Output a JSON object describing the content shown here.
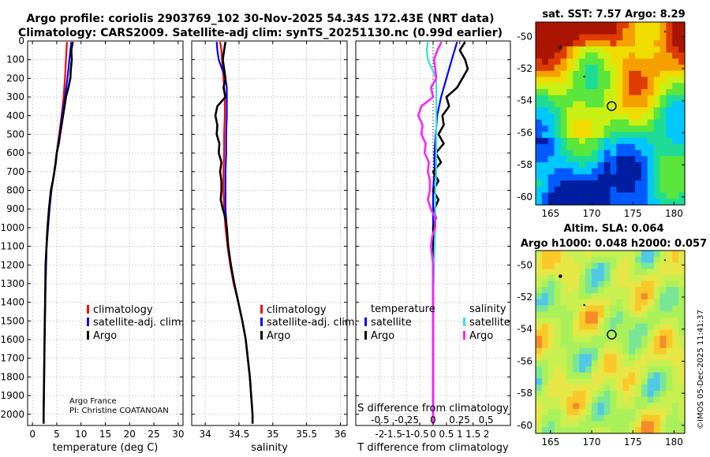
{
  "title_line1": "Argo profile: coriolis 2903769_102 30-Nov-2025 54.34S 172.43E (NRT data)",
  "title_line2": "Climatology: CARS2009. Satellite-adj clim: synTS_20251130.nc (0.99d earlier)",
  "credit_org": "Argo France",
  "credit_pi": "PI: Christine COATANOAN",
  "imos_stamp": "©IMOS 05-Dec-2025 11:41:37",
  "colors": {
    "climatology": "#ff0000",
    "satellite_adj": "#0000ff",
    "argo": "#000000",
    "sal_satellite": "#33e0e0",
    "sal_argo": "#ff22ff"
  },
  "legend": {
    "climatology": "climatology",
    "satellite_adj": "satellite-adj. clim.",
    "argo": "Argo",
    "diff_temperature_header": "temperature",
    "diff_salinity_header": "salinity",
    "satellite": "satellite",
    "argo_short": "Argo"
  },
  "maps": {
    "sst_title": "sat. SST: 7.57 Argo: 8.29",
    "sla_title1": "Altim. SLA: 0.064",
    "sla_title2": "Argo h1000: 0.048 h2000: 0.057",
    "lon_ticks": [
      165,
      170,
      175,
      180
    ],
    "lat_ticks": [
      -50,
      -52,
      -54,
      -56,
      -58,
      -60
    ],
    "argo_position": {
      "lon": 172.43,
      "lat": -54.34
    }
  },
  "chart_data": [
    {
      "type": "line",
      "title": "",
      "xlabel": "temperature (deg C)",
      "ylabel": "",
      "xlim": [
        -1,
        31
      ],
      "ylim": [
        2060,
        0
      ],
      "xticks": [
        0,
        5,
        10,
        15,
        20,
        25,
        30
      ],
      "yticks": [
        0,
        100,
        200,
        300,
        400,
        500,
        600,
        700,
        800,
        900,
        1000,
        1100,
        1200,
        1300,
        1400,
        1500,
        1600,
        1700,
        1800,
        1900,
        2000
      ],
      "series": [
        {
          "name": "climatology",
          "depth": [
            5,
            100,
            200,
            300,
            400,
            500,
            600,
            700,
            800,
            900,
            1000,
            1100,
            1200,
            1400,
            1600,
            1800,
            2000,
            2050
          ],
          "values": [
            7.1,
            6.9,
            6.7,
            6.4,
            6.0,
            5.5,
            5.0,
            4.5,
            3.9,
            3.5,
            3.2,
            2.9,
            2.8,
            2.6,
            2.5,
            2.4,
            2.3,
            2.3
          ]
        },
        {
          "name": "satellite-adj. clim.",
          "depth": [
            5,
            100,
            200,
            300,
            400,
            500,
            600,
            700,
            800,
            900,
            1000,
            1100,
            1200,
            1400,
            1600,
            1800,
            2000,
            2050
          ],
          "values": [
            8.0,
            7.6,
            7.2,
            6.7,
            6.1,
            5.6,
            5.0,
            4.5,
            3.9,
            3.5,
            3.2,
            2.9,
            2.8,
            2.6,
            2.5,
            2.4,
            2.3,
            2.3
          ]
        },
        {
          "name": "Argo",
          "depth": [
            5,
            50,
            100,
            150,
            200,
            250,
            300,
            350,
            400,
            450,
            500,
            550,
            600,
            650,
            700,
            750,
            800,
            850,
            900,
            1000,
            1100,
            1200,
            1400,
            1600,
            1800,
            2000,
            2050
          ],
          "values": [
            8.3,
            8.0,
            8.1,
            7.9,
            7.8,
            7.4,
            6.9,
            6.6,
            6.3,
            6.0,
            5.7,
            5.4,
            5.0,
            4.8,
            4.5,
            4.2,
            3.8,
            3.6,
            3.4,
            3.1,
            2.9,
            2.7,
            2.6,
            2.5,
            2.4,
            2.3,
            2.3
          ]
        }
      ],
      "legend_entries": [
        "climatology",
        "satellite-adj. clim.",
        "Argo"
      ],
      "legend_position": "lower-right"
    },
    {
      "type": "line",
      "title": "",
      "xlabel": "salinity",
      "ylabel": "",
      "xlim": [
        33.8,
        36.1
      ],
      "ylim": [
        2060,
        0
      ],
      "xticks": [
        34,
        34.5,
        35,
        35.5,
        36
      ],
      "series": [
        {
          "name": "climatology",
          "depth": [
            5,
            50,
            100,
            150,
            200,
            300,
            400,
            500,
            600,
            700,
            800,
            900,
            1000,
            1100,
            1200,
            1300,
            1400,
            1500,
            1600,
            1700,
            1800,
            1900,
            2000,
            2050
          ],
          "values": [
            34.22,
            34.24,
            34.25,
            34.26,
            34.27,
            34.29,
            34.29,
            34.28,
            34.28,
            34.27,
            34.27,
            34.28,
            34.3,
            34.33,
            34.37,
            34.42,
            34.49,
            34.55,
            34.6,
            34.63,
            34.66,
            34.68,
            34.7,
            34.7
          ]
        },
        {
          "name": "satellite-adj. clim.",
          "depth": [
            5,
            50,
            100,
            150,
            200,
            250,
            300,
            400,
            500,
            600,
            700,
            800,
            900,
            1000,
            1100,
            1200,
            1300,
            1400,
            1500,
            1600,
            1700,
            1800,
            1900,
            2000,
            2050
          ],
          "values": [
            34.17,
            34.18,
            34.2,
            34.25,
            34.3,
            34.32,
            34.32,
            34.32,
            34.31,
            34.31,
            34.3,
            34.3,
            34.3,
            34.32,
            34.34,
            34.38,
            34.43,
            34.49,
            34.55,
            34.6,
            34.63,
            34.66,
            34.68,
            34.7,
            34.7
          ]
        },
        {
          "name": "Argo",
          "depth": [
            5,
            50,
            100,
            150,
            200,
            250,
            300,
            350,
            400,
            450,
            500,
            550,
            600,
            650,
            700,
            750,
            800,
            850,
            900,
            950,
            1000,
            1050,
            1100,
            1150,
            1200,
            1300,
            1400,
            1500,
            1600,
            1700,
            1800,
            1900,
            2000,
            2050
          ],
          "values": [
            34.3,
            34.28,
            34.26,
            34.28,
            34.3,
            34.27,
            34.3,
            34.18,
            34.15,
            34.18,
            34.17,
            34.21,
            34.2,
            34.24,
            34.22,
            34.24,
            34.24,
            34.23,
            34.26,
            34.3,
            34.32,
            34.33,
            34.34,
            34.36,
            34.38,
            34.43,
            34.49,
            34.55,
            34.6,
            34.63,
            34.66,
            34.68,
            34.7,
            34.7
          ]
        }
      ],
      "legend_entries": [
        "climatology",
        "satellite-adj. clim.",
        "Argo"
      ],
      "legend_position": "lower-right"
    },
    {
      "type": "line",
      "title": "",
      "xlabel": "T difference from climatology",
      "x2label": "S difference from climatology",
      "xlim": [
        -2.9,
        2.9
      ],
      "ylim": [
        2060,
        0
      ],
      "xticks": [
        -2,
        -1.5,
        -1,
        -0.5,
        0,
        0.5,
        1,
        1.5,
        2
      ],
      "xticklabels": [
        "-2",
        "-1.5",
        "-1",
        "-0.5",
        "0",
        "0.5",
        "1",
        "1.5",
        "2"
      ],
      "x2lim": [
        -0.73,
        0.73
      ],
      "x2ticks": [
        -0.5,
        -0.25,
        0,
        0.25,
        0.5
      ],
      "x2ticklabels": [
        "-0.5",
        "-0.25",
        "0",
        "0.25",
        "0.5"
      ],
      "series": [
        {
          "name": "temperature satellite",
          "depth": [
            5,
            100,
            200,
            300,
            400,
            500,
            600,
            700,
            800,
            900,
            1000,
            1100,
            1200,
            1400,
            1600,
            1800,
            2000,
            2050
          ],
          "values": [
            0.9,
            0.7,
            0.5,
            0.3,
            0.15,
            0.1,
            0.05,
            0.05,
            0.0,
            0.0,
            0.0,
            0.0,
            0.0,
            0.0,
            0.0,
            0.0,
            0.0,
            0.0
          ]
        },
        {
          "name": "temperature Argo",
          "depth": [
            5,
            50,
            100,
            150,
            200,
            250,
            300,
            350,
            400,
            450,
            500,
            550,
            600,
            650,
            700,
            750,
            800,
            850,
            900,
            950,
            1000,
            1100,
            1200,
            1400,
            1600,
            1800,
            2000,
            2050
          ],
          "values": [
            1.2,
            1.0,
            1.2,
            1.3,
            1.1,
            0.9,
            0.5,
            0.6,
            0.35,
            0.4,
            0.2,
            0.4,
            0.1,
            0.3,
            0.0,
            0.2,
            0.0,
            0.2,
            0.05,
            0.1,
            0.0,
            0.02,
            0.0,
            0.0,
            0.0,
            0.0,
            0.0,
            0.0
          ]
        },
        {
          "name": "salinity satellite",
          "depth": [
            5,
            50,
            100,
            150,
            200,
            300,
            400,
            500,
            600,
            700,
            800,
            900,
            1000,
            1200,
            1400,
            1600,
            1800,
            2000,
            2050
          ],
          "values": [
            -0.05,
            -0.06,
            -0.05,
            -0.01,
            0.03,
            0.03,
            0.03,
            0.03,
            0.03,
            0.03,
            0.02,
            0.02,
            0.02,
            0.01,
            0.0,
            0.0,
            0.0,
            0.0,
            0.0
          ]
        },
        {
          "name": "salinity Argo",
          "depth": [
            5,
            50,
            100,
            150,
            200,
            250,
            300,
            350,
            400,
            450,
            500,
            550,
            600,
            650,
            700,
            750,
            800,
            850,
            900,
            950,
            1000,
            1050,
            1100,
            1150,
            1200,
            1300,
            1400,
            1500,
            1600,
            1800,
            2000,
            2050
          ],
          "values": [
            0.08,
            0.04,
            0.01,
            0.02,
            0.03,
            -0.02,
            0.0,
            -0.11,
            -0.14,
            -0.1,
            -0.11,
            -0.07,
            -0.08,
            -0.04,
            -0.05,
            -0.03,
            -0.03,
            -0.05,
            -0.02,
            0.02,
            0.02,
            -0.01,
            -0.02,
            -0.01,
            0.0,
            0.0,
            0.0,
            0.0,
            0.0,
            0.0,
            0.0,
            0.0
          ]
        }
      ],
      "legend_entries": [
        "temperature",
        "satellite",
        "Argo",
        "salinity",
        "satellite",
        "Argo"
      ],
      "legend_position": "lower-right"
    }
  ]
}
